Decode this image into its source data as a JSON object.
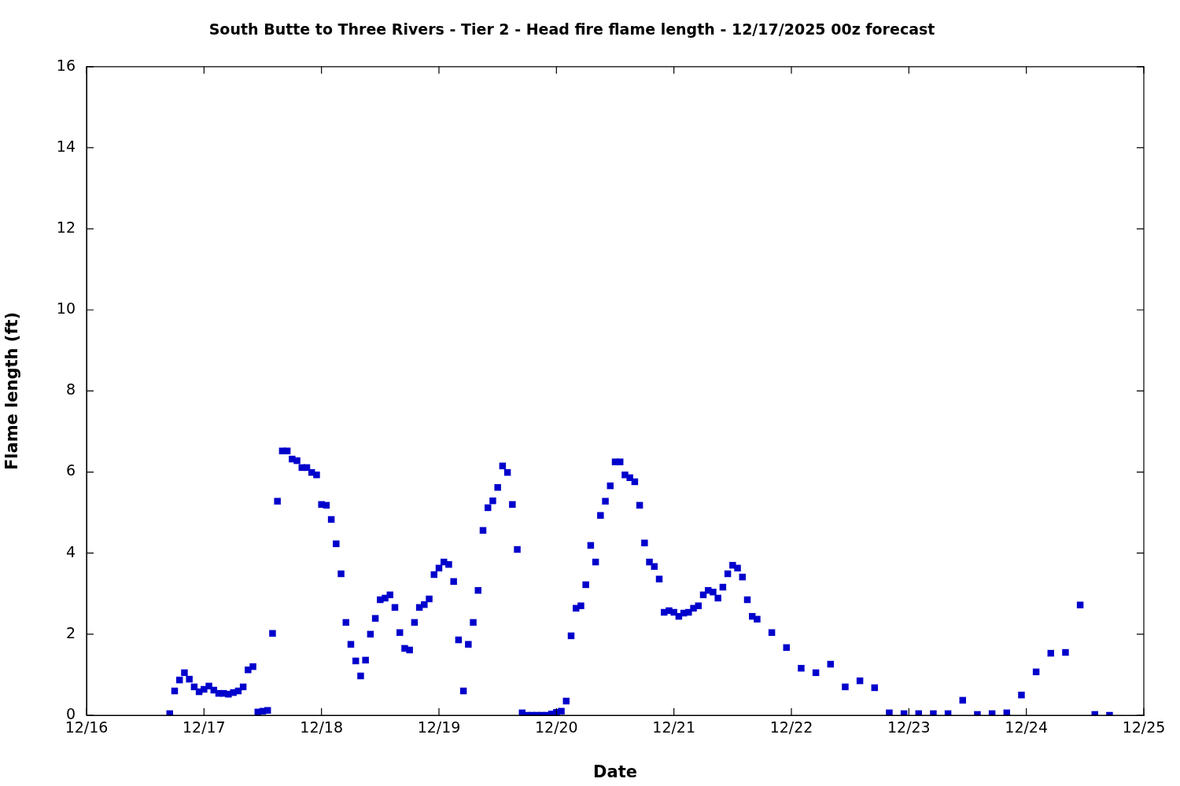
{
  "chart_data": {
    "type": "scatter",
    "title": "South Butte to Three Rivers - Tier 2 - Head fire flame length - 12/17/2025 00z forecast",
    "xlabel": "Date",
    "ylabel": "Flame length (ft)",
    "marker": "square",
    "grid": false,
    "legend": false,
    "xlim": [
      "--12-16",
      "--12-25"
    ],
    "xticks": [
      {
        "value": "--12-16",
        "label": "12/16"
      },
      {
        "value": "--12-17",
        "label": "12/17"
      },
      {
        "value": "--12-18",
        "label": "12/18"
      },
      {
        "value": "--12-19",
        "label": "12/19"
      },
      {
        "value": "--12-20",
        "label": "12/20"
      },
      {
        "value": "--12-21",
        "label": "12/21"
      },
      {
        "value": "--12-22",
        "label": "12/22"
      },
      {
        "value": "--12-23",
        "label": "12/23"
      },
      {
        "value": "--12-24",
        "label": "12/24"
      },
      {
        "value": "--12-25",
        "label": "12/25"
      }
    ],
    "ylim": [
      0,
      16
    ],
    "yticks": [
      0,
      2,
      4,
      6,
      8,
      10,
      12,
      14,
      16
    ],
    "series": [
      {
        "color": "#0000cc",
        "x": [
          "--12-16T17:00",
          "--12-16T18:00",
          "--12-16T19:00",
          "--12-16T20:00",
          "--12-16T21:00",
          "--12-16T22:00",
          "--12-16T23:00",
          "--12-17T00:00",
          "--12-17T01:00",
          "--12-17T02:00",
          "--12-17T03:00",
          "--12-17T04:00",
          "--12-17T05:00",
          "--12-17T06:00",
          "--12-17T07:00",
          "--12-17T08:00",
          "--12-17T09:00",
          "--12-17T10:00",
          "--12-17T11:00",
          "--12-17T12:00",
          "--12-17T13:00",
          "--12-17T14:00",
          "--12-17T15:00",
          "--12-17T16:00",
          "--12-17T17:00",
          "--12-17T18:00",
          "--12-17T19:00",
          "--12-17T20:00",
          "--12-17T21:00",
          "--12-17T22:00",
          "--12-17T23:00",
          "--12-18T00:00",
          "--12-18T01:00",
          "--12-18T02:00",
          "--12-18T03:00",
          "--12-18T04:00",
          "--12-18T05:00",
          "--12-18T06:00",
          "--12-18T07:00",
          "--12-18T08:00",
          "--12-18T09:00",
          "--12-18T10:00",
          "--12-18T11:00",
          "--12-18T12:00",
          "--12-18T13:00",
          "--12-18T14:00",
          "--12-18T15:00",
          "--12-18T16:00",
          "--12-18T17:00",
          "--12-18T18:00",
          "--12-18T19:00",
          "--12-18T20:00",
          "--12-18T21:00",
          "--12-18T22:00",
          "--12-18T23:00",
          "--12-19T00:00",
          "--12-19T01:00",
          "--12-19T02:00",
          "--12-19T03:00",
          "--12-19T04:00",
          "--12-19T05:00",
          "--12-19T06:00",
          "--12-19T07:00",
          "--12-19T08:00",
          "--12-19T09:00",
          "--12-19T10:00",
          "--12-19T11:00",
          "--12-19T12:00",
          "--12-19T13:00",
          "--12-19T14:00",
          "--12-19T15:00",
          "--12-19T16:00",
          "--12-19T17:00",
          "--12-19T18:00",
          "--12-19T19:00",
          "--12-19T20:00",
          "--12-19T21:00",
          "--12-19T22:00",
          "--12-19T23:00",
          "--12-20T00:00",
          "--12-20T01:00",
          "--12-20T02:00",
          "--12-20T03:00",
          "--12-20T04:00",
          "--12-20T05:00",
          "--12-20T06:00",
          "--12-20T07:00",
          "--12-20T08:00",
          "--12-20T09:00",
          "--12-20T10:00",
          "--12-20T11:00",
          "--12-20T12:00",
          "--12-20T13:00",
          "--12-20T14:00",
          "--12-20T15:00",
          "--12-20T16:00",
          "--12-20T17:00",
          "--12-20T18:00",
          "--12-20T19:00",
          "--12-20T20:00",
          "--12-20T21:00",
          "--12-20T22:00",
          "--12-20T23:00",
          "--12-21T00:00",
          "--12-21T01:00",
          "--12-21T02:00",
          "--12-21T03:00",
          "--12-21T04:00",
          "--12-21T05:00",
          "--12-21T06:00",
          "--12-21T07:00",
          "--12-21T08:00",
          "--12-21T09:00",
          "--12-21T10:00",
          "--12-21T11:00",
          "--12-21T12:00",
          "--12-21T13:00",
          "--12-21T14:00",
          "--12-21T15:00",
          "--12-21T16:00",
          "--12-21T17:00",
          "--12-21T20:00",
          "--12-21T23:00",
          "--12-22T02:00",
          "--12-22T05:00",
          "--12-22T08:00",
          "--12-22T11:00",
          "--12-22T14:00",
          "--12-22T17:00",
          "--12-22T20:00",
          "--12-22T23:00",
          "--12-23T02:00",
          "--12-23T05:00",
          "--12-23T08:00",
          "--12-23T11:00",
          "--12-23T14:00",
          "--12-23T17:00",
          "--12-23T20:00",
          "--12-23T23:00",
          "--12-24T02:00",
          "--12-24T05:00",
          "--12-24T08:00",
          "--12-24T11:00",
          "--12-24T14:00",
          "--12-24T17:00"
        ],
        "values": [
          0.04,
          0.6,
          0.87,
          1.05,
          0.89,
          0.7,
          0.58,
          0.64,
          0.72,
          0.62,
          0.54,
          0.54,
          0.52,
          0.56,
          0.6,
          0.7,
          1.12,
          1.2,
          0.08,
          0.1,
          0.12,
          2.02,
          5.28,
          6.52,
          6.52,
          6.32,
          6.28,
          6.11,
          6.11,
          5.99,
          5.93,
          5.2,
          5.18,
          4.83,
          4.23,
          3.49,
          2.29,
          1.75,
          1.34,
          0.97,
          1.36,
          2.0,
          2.39,
          2.85,
          2.89,
          2.97,
          2.66,
          2.04,
          1.65,
          1.61,
          2.29,
          2.66,
          2.73,
          2.87,
          3.47,
          3.63,
          3.78,
          3.72,
          3.3,
          1.86,
          0.6,
          1.75,
          2.29,
          3.08,
          4.56,
          5.12,
          5.29,
          5.62,
          6.15,
          5.99,
          5.2,
          4.09,
          0.06,
          0,
          0,
          0,
          0,
          0,
          0.03,
          0.07,
          0.1,
          0.35,
          1.96,
          2.64,
          2.7,
          3.22,
          4.19,
          3.78,
          4.93,
          5.28,
          5.66,
          6.25,
          6.25,
          5.93,
          5.86,
          5.76,
          5.18,
          4.25,
          3.78,
          3.67,
          3.36,
          2.54,
          2.58,
          2.54,
          2.44,
          2.52,
          2.54,
          2.64,
          2.7,
          2.97,
          3.08,
          3.04,
          2.89,
          3.16,
          3.49,
          3.7,
          3.63,
          3.41,
          2.85,
          2.44,
          2.37,
          2.04,
          1.67,
          1.16,
          1.05,
          1.26,
          0.7,
          0.85,
          0.68,
          0.06,
          0.04,
          0.04,
          0.04,
          0.04,
          0.37,
          0.02,
          0.04,
          0.06,
          0.5,
          1.07,
          1.53,
          1.55,
          2.72,
          0.02,
          0
        ]
      }
    ]
  }
}
